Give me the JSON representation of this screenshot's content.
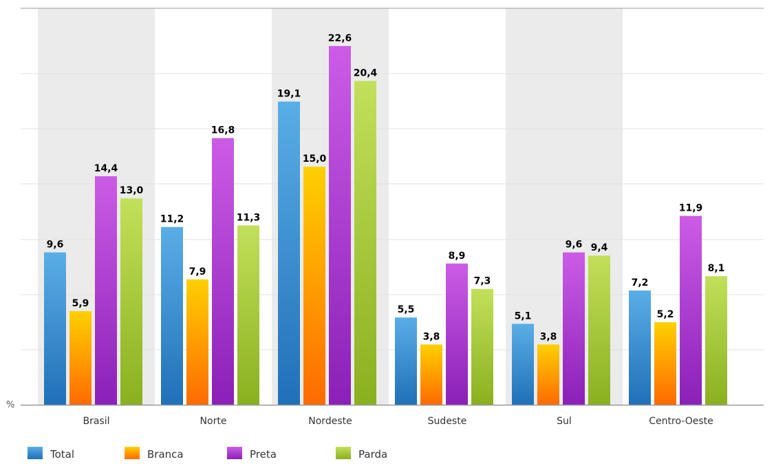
{
  "chart_data": {
    "type": "bar",
    "categories": [
      "Brasil",
      "Norte",
      "Nordeste",
      "Sudeste",
      "Sul",
      "Centro-Oeste"
    ],
    "series": [
      {
        "name": "Total",
        "values": [
          9.6,
          11.2,
          19.1,
          5.5,
          5.1,
          7.2
        ],
        "value_labels": [
          "9,6",
          "11,2",
          "19,1",
          "5,5",
          "5,1",
          "7,2"
        ]
      },
      {
        "name": "Branca",
        "values": [
          5.9,
          7.9,
          15.0,
          3.8,
          3.8,
          5.2
        ],
        "value_labels": [
          "5,9",
          "7,9",
          "15,0",
          "3,8",
          "3,8",
          "5,2"
        ]
      },
      {
        "name": "Preta",
        "values": [
          14.4,
          16.8,
          22.6,
          8.9,
          9.6,
          11.9
        ],
        "value_labels": [
          "14,4",
          "16,8",
          "22,6",
          "8,9",
          "9,6",
          "11,9"
        ]
      },
      {
        "name": "Parda",
        "values": [
          13.0,
          11.3,
          20.4,
          7.3,
          9.4,
          8.1
        ],
        "value_labels": [
          "13,0",
          "11,3",
          "20,4",
          "7,3",
          "9,4",
          "8,1"
        ]
      }
    ],
    "ylabel": "%",
    "ylim": [
      0,
      24
    ],
    "grid": true,
    "shaded_categories": [
      "Brasil",
      "Nordeste",
      "Sul"
    ],
    "legend_placement": "bottom",
    "colors": {
      "Total": [
        "#5aaee6",
        "#1f70b8"
      ],
      "Branca": [
        "#ffd000",
        "#ff6a00"
      ],
      "Preta": [
        "#cc5ce6",
        "#8a20b8"
      ],
      "Parda": [
        "#c2e05a",
        "#8ab01f"
      ],
      "band": "#ebebeb",
      "grid": "#e0e0e0",
      "axis": "#9a9a9a",
      "value_label": "#000000",
      "category_label": "#333333"
    }
  }
}
